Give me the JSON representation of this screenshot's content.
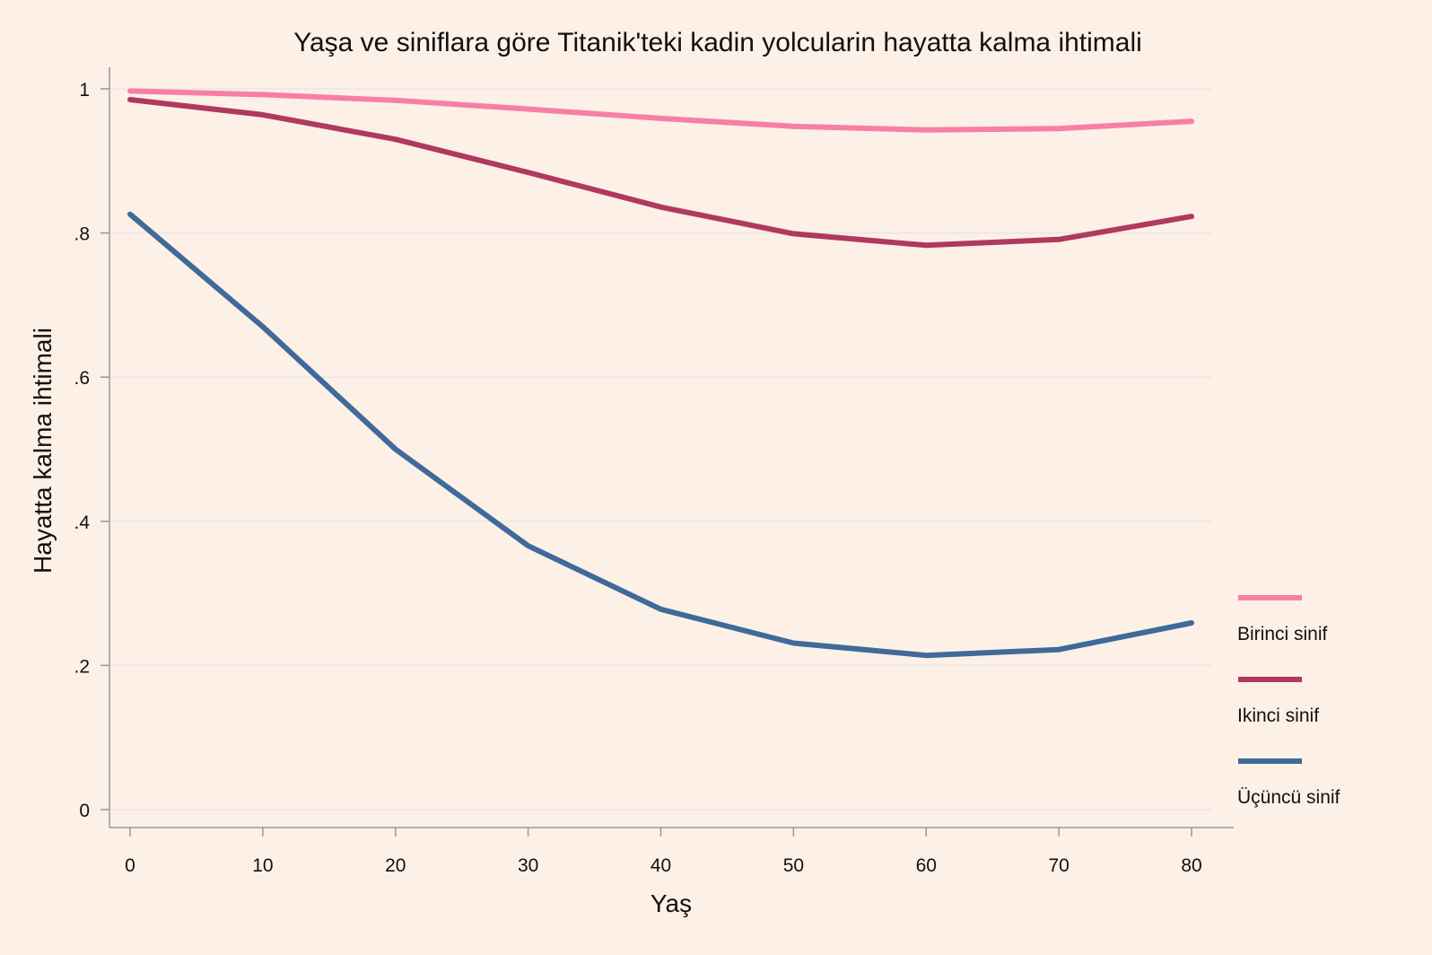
{
  "colors": {
    "background": "#fdf0e7",
    "grid": "#e9e6e6",
    "axis": "#999999",
    "text": "#111111"
  },
  "chart_data": {
    "type": "line",
    "title": "Yaşa ve siniflara göre Titanik'teki kadin yolcularin hayatta kalma ihtimali",
    "xlabel": "Yaş",
    "ylabel": "Hayatta kalma ihtimali",
    "xlim": [
      0,
      80
    ],
    "ylim": [
      0,
      1
    ],
    "x_ticks": [
      0,
      10,
      20,
      30,
      40,
      50,
      60,
      70,
      80
    ],
    "x_tick_labels": [
      "0",
      "10",
      "20",
      "30",
      "40",
      "50",
      "60",
      "70",
      "80"
    ],
    "y_ticks": [
      0,
      0.2,
      0.4,
      0.6,
      0.8,
      1
    ],
    "y_tick_labels": [
      "0",
      ".2",
      ".4",
      ".6",
      ".8",
      "1"
    ],
    "grid": true,
    "legend_position": "bottom-right outside",
    "x": [
      0,
      10,
      20,
      30,
      40,
      50,
      60,
      70,
      80
    ],
    "series": [
      {
        "name": "Birinci sinif",
        "color": "#f77fa5",
        "values": [
          0.997,
          0.992,
          0.984,
          0.972,
          0.959,
          0.948,
          0.943,
          0.945,
          0.955
        ]
      },
      {
        "name": "Ikinci sinif",
        "color": "#b0395e",
        "values": [
          0.985,
          0.964,
          0.93,
          0.884,
          0.836,
          0.799,
          0.783,
          0.791,
          0.823
        ]
      },
      {
        "name": "Üçüncü sinif",
        "color": "#3f6a99",
        "values": [
          0.826,
          0.67,
          0.5,
          0.366,
          0.278,
          0.231,
          0.214,
          0.222,
          0.259
        ]
      }
    ]
  }
}
